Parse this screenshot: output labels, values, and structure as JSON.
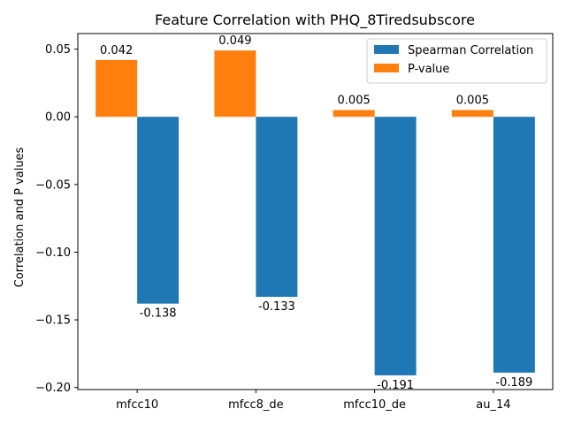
{
  "chart_data": {
    "type": "bar",
    "title": "Feature Correlation with PHQ_8Tiredsubscore",
    "xlabel": "",
    "ylabel": "Correlation and P values",
    "categories": [
      "mfcc10",
      "mfcc8_de",
      "mfcc10_de",
      "au_14"
    ],
    "series": [
      {
        "name": "Spearman Correlation",
        "color": "#1f77b4",
        "values": [
          -0.138,
          -0.133,
          -0.191,
          -0.189
        ],
        "labels": [
          "-0.138",
          "-0.133",
          "-0.191",
          "-0.189"
        ]
      },
      {
        "name": "P-value",
        "color": "#ff7f0e",
        "values": [
          0.042,
          0.049,
          0.005,
          0.005
        ],
        "labels": [
          "0.042",
          "0.049",
          "0.005",
          "0.005"
        ]
      }
    ],
    "ylim": [
      -0.2015,
      0.0615
    ],
    "yticks": [
      0.05,
      0.0,
      -0.05,
      -0.1,
      -0.15,
      -0.2
    ],
    "ytick_labels": [
      "0.05",
      "0.00",
      "−0.05",
      "−0.10",
      "−0.15",
      "−0.20"
    ],
    "grid": false,
    "legend_position": "top-right"
  }
}
